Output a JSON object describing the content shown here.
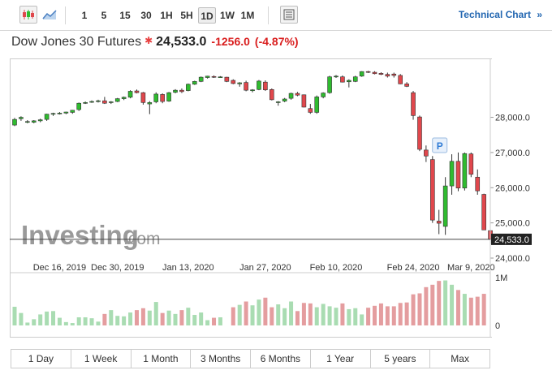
{
  "toolbar": {
    "intervals": [
      "1",
      "5",
      "15",
      "30",
      "1H",
      "5H",
      "1D",
      "1W",
      "1M"
    ],
    "active_interval": "1D",
    "technical_chart": "Technical Chart",
    "chevrons": "»"
  },
  "header": {
    "name": "Dow Jones 30 Futures",
    "price": "24,533.0",
    "change": "-1256.0",
    "change_pct": "(-4.87%)",
    "down_color": "#d91e1e"
  },
  "watermark": {
    "brand": "Investing",
    "suffix": ".com"
  },
  "ranges": [
    "1 Day",
    "1 Week",
    "1 Month",
    "3 Months",
    "6 Months",
    "1 Year",
    "5 years",
    "Max"
  ],
  "colors": {
    "up": "#2fbb2f",
    "down": "#e0474c",
    "vol_up": "#a9dcb2",
    "vol_down": "#e49d9f"
  },
  "chart_data": {
    "type": "candlestick",
    "y_ticks": [
      "28,000.0",
      "27,000.0",
      "26,000.0",
      "25,000.0",
      "24,000.0"
    ],
    "y_tick_values": [
      28000,
      27000,
      26000,
      25000,
      24000
    ],
    "ylim": [
      24000,
      29650
    ],
    "x_tick_labels": [
      "Dec 16, 2019",
      "Dec 30, 2019",
      "Jan 13, 2020",
      "Jan 27, 2020",
      "Feb 10, 2020",
      "Feb 24, 2020",
      "Mar 9, 2020"
    ],
    "x_tick_index": [
      7,
      16,
      27,
      39,
      50,
      62,
      71
    ],
    "last_price_label": "24,533.0",
    "last_price": 24533,
    "marker": "P",
    "marker_index": 66,
    "volume_ticks": [
      "1M",
      "0"
    ],
    "volume_tick_values": [
      1000000,
      0
    ],
    "volume_max": 1000000,
    "candles": [
      [
        27780,
        27985,
        27750,
        27940,
        390000
      ],
      [
        27960,
        28030,
        27900,
        28000,
        260000
      ],
      [
        27870,
        27920,
        27830,
        27880,
        60000
      ],
      [
        27860,
        27920,
        27830,
        27900,
        130000
      ],
      [
        27900,
        27960,
        27860,
        27930,
        230000
      ],
      [
        27940,
        28100,
        27900,
        28090,
        290000
      ],
      [
        28090,
        28130,
        28040,
        28110,
        300000
      ],
      [
        28110,
        28150,
        28080,
        28120,
        160000
      ],
      [
        28120,
        28160,
        28090,
        28150,
        70000
      ],
      [
        28140,
        28210,
        28100,
        28200,
        50000
      ],
      [
        28220,
        28420,
        28180,
        28400,
        170000
      ],
      [
        28400,
        28450,
        28380,
        28420,
        170000
      ],
      [
        28440,
        28480,
        28410,
        28450,
        150000
      ],
      [
        28450,
        28500,
        28420,
        28470,
        80000
      ],
      [
        28470,
        28580,
        28380,
        28400,
        240000
      ],
      [
        28420,
        28460,
        28380,
        28440,
        320000
      ],
      [
        28450,
        28550,
        28430,
        28530,
        200000
      ],
      [
        28530,
        28590,
        28490,
        28570,
        190000
      ],
      [
        28570,
        28770,
        28540,
        28740,
        270000
      ],
      [
        28750,
        28790,
        28680,
        28700,
        320000
      ],
      [
        28700,
        28720,
        28360,
        28420,
        360000
      ],
      [
        28380,
        28460,
        28090,
        28420,
        310000
      ],
      [
        28440,
        28710,
        28400,
        28660,
        490000
      ],
      [
        28650,
        28680,
        28400,
        28450,
        260000
      ],
      [
        28460,
        28720,
        28440,
        28700,
        310000
      ],
      [
        28710,
        28800,
        28680,
        28770,
        240000
      ],
      [
        28770,
        28820,
        28690,
        28730,
        320000
      ],
      [
        28760,
        28960,
        28740,
        28940,
        370000
      ],
      [
        28940,
        29040,
        28920,
        29020,
        220000
      ],
      [
        29020,
        29160,
        29000,
        29140,
        270000
      ],
      [
        29130,
        29180,
        29100,
        29170,
        110000
      ],
      [
        29160,
        29190,
        29120,
        29150,
        160000
      ],
      [
        29150,
        29170,
        29120,
        29150,
        170000
      ],
      [
        29140,
        29150,
        29000,
        29020,
        0
      ],
      [
        29050,
        29080,
        28940,
        28960,
        380000
      ],
      [
        28950,
        29000,
        28870,
        28980,
        430000
      ],
      [
        28990,
        29040,
        28740,
        28770,
        500000
      ],
      [
        28770,
        28800,
        28710,
        28780,
        420000
      ],
      [
        28790,
        29060,
        28770,
        29030,
        540000
      ],
      [
        29000,
        29050,
        28750,
        28780,
        580000
      ],
      [
        28790,
        28820,
        28480,
        28500,
        380000
      ],
      [
        28420,
        28460,
        28330,
        28440,
        440000
      ],
      [
        28460,
        28550,
        28430,
        28520,
        360000
      ],
      [
        28540,
        28700,
        28500,
        28680,
        500000
      ],
      [
        28680,
        28720,
        28600,
        28630,
        300000
      ],
      [
        28640,
        28650,
        28280,
        28290,
        470000
      ],
      [
        28250,
        28380,
        28100,
        28140,
        460000
      ],
      [
        28140,
        28620,
        28100,
        28580,
        380000
      ],
      [
        28580,
        28710,
        28540,
        28690,
        450000
      ],
      [
        28700,
        29180,
        28670,
        29150,
        400000
      ],
      [
        29150,
        29200,
        29120,
        29170,
        370000
      ],
      [
        29150,
        29190,
        28990,
        29000,
        460000
      ],
      [
        29010,
        29080,
        28850,
        29050,
        340000
      ],
      [
        29020,
        29180,
        29000,
        29150,
        360000
      ],
      [
        29170,
        29310,
        29150,
        29300,
        230000
      ],
      [
        29300,
        29320,
        29260,
        29290,
        370000
      ],
      [
        29280,
        29310,
        29220,
        29240,
        410000
      ],
      [
        29250,
        29280,
        29200,
        29220,
        460000
      ],
      [
        29220,
        29270,
        29130,
        29170,
        400000
      ],
      [
        29230,
        29270,
        29130,
        29190,
        400000
      ],
      [
        29190,
        29230,
        28940,
        28950,
        470000
      ],
      [
        28950,
        29000,
        28860,
        28880,
        480000
      ],
      [
        28700,
        28750,
        27930,
        28050,
        650000
      ],
      [
        28010,
        28050,
        27040,
        27090,
        670000
      ],
      [
        27070,
        27200,
        26730,
        26900,
        800000
      ],
      [
        26800,
        26900,
        25000,
        25080,
        850000
      ],
      [
        25050,
        25370,
        24680,
        24990,
        930000
      ],
      [
        24900,
        26300,
        24660,
        26050,
        940000
      ],
      [
        26050,
        26950,
        25800,
        26750,
        850000
      ],
      [
        26750,
        27000,
        25900,
        25990,
        740000
      ],
      [
        25990,
        27000,
        25920,
        26970,
        660000
      ],
      [
        26960,
        27000,
        26300,
        26380,
        580000
      ],
      [
        26300,
        26520,
        25800,
        25910,
        600000
      ],
      [
        25810,
        25830,
        24800,
        24800,
        660000
      ],
      [
        24780,
        24810,
        24400,
        24533,
        0
      ]
    ]
  }
}
